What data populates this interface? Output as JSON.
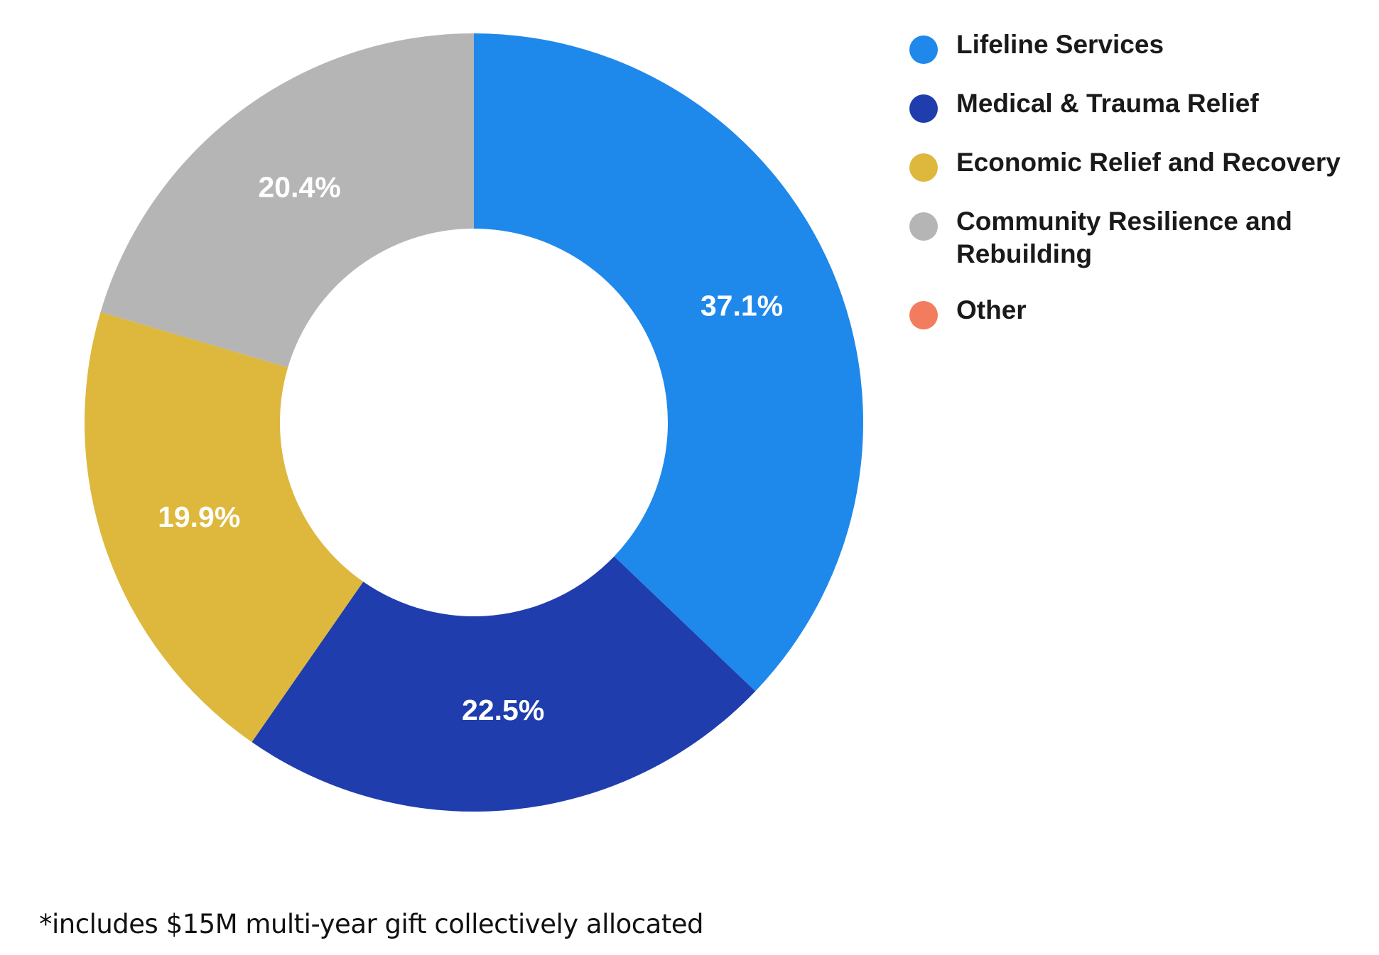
{
  "chart_data": {
    "type": "pie",
    "donut": true,
    "start_angle_deg": 0,
    "direction": "clockwise",
    "slices": [
      {
        "label": "Lifeline Services",
        "value": 37.1,
        "value_label": "37.1%",
        "color": "#1F88EB"
      },
      {
        "label": "Medical & Trauma Relief",
        "value": 22.5,
        "value_label": "22.5%",
        "color": "#1F3DAD"
      },
      {
        "label": "Economic Relief and Recovery",
        "value": 19.9,
        "value_label": "19.9%",
        "color": "#DDB83D"
      },
      {
        "label": "Community Resilience and Rebuilding",
        "value": 20.4,
        "value_label": "20.4%",
        "color": "#B5B5B5"
      },
      {
        "label": "Other",
        "value": 0,
        "value_label": "",
        "color": "#F47C5E"
      }
    ],
    "legend_position": "right"
  },
  "footnote": "*includes $15M multi-year gift collectively allocated"
}
